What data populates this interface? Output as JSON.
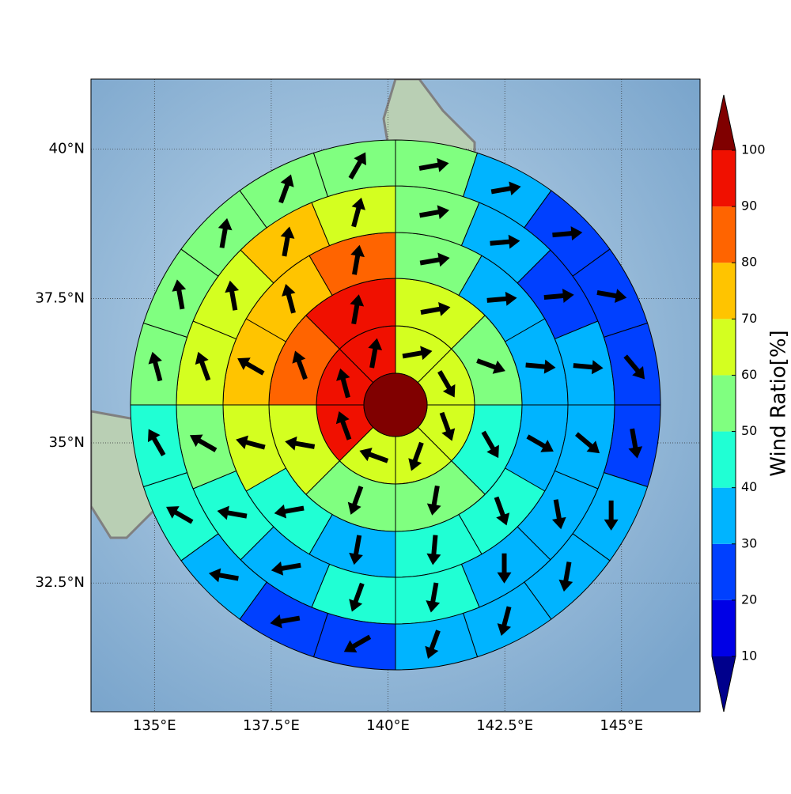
{
  "chart_data": {
    "type": "wind_map",
    "xlim": [
      133.64,
      146.68
    ],
    "ylim": [
      30.14,
      41.14
    ],
    "xticks": [
      {
        "value": 135,
        "label": "135°E"
      },
      {
        "value": 137.5,
        "label": "137.5°E"
      },
      {
        "value": 140,
        "label": "140°E"
      },
      {
        "value": 142.5,
        "label": "142.5°E"
      },
      {
        "value": 145,
        "label": "145°E"
      }
    ],
    "yticks": [
      {
        "value": 32.5,
        "label": "32.5°N"
      },
      {
        "value": 35,
        "label": "35°N"
      },
      {
        "value": 37.5,
        "label": "37.5°N"
      },
      {
        "value": 40,
        "label": "40°N"
      }
    ],
    "grid": true,
    "center_value": 105,
    "rings": [
      {
        "values": [
          65,
          65,
          65,
          65,
          65,
          95,
          95,
          95
        ],
        "directions": [
          80,
          150,
          160,
          200,
          290,
          340,
          345,
          10
        ]
      },
      {
        "values": [
          65,
          55,
          45,
          55,
          55,
          65,
          85,
          95
        ],
        "directions": [
          80,
          110,
          150,
          190,
          200,
          280,
          340,
          10
        ]
      },
      {
        "values": [
          55,
          35,
          35,
          35,
          45,
          45,
          35,
          45,
          65,
          75,
          75,
          85
        ],
        "directions": [
          80,
          85,
          95,
          120,
          160,
          185,
          190,
          260,
          285,
          300,
          345,
          10
        ]
      },
      {
        "values": [
          55,
          35,
          25,
          35,
          35,
          35,
          35,
          45,
          45,
          35,
          45,
          55,
          65,
          65,
          75,
          65
        ],
        "directions": [
          80,
          85,
          85,
          95,
          130,
          170,
          180,
          190,
          200,
          260,
          280,
          300,
          340,
          350,
          10,
          15
        ]
      },
      {
        "values": [
          55,
          35,
          25,
          25,
          25,
          25,
          35,
          35,
          35,
          35,
          25,
          25,
          35,
          45,
          45,
          55,
          55,
          55,
          55,
          55
        ],
        "directions": [
          80,
          80,
          85,
          100,
          140,
          170,
          180,
          190,
          195,
          200,
          240,
          260,
          280,
          300,
          330,
          345,
          350,
          10,
          20,
          30
        ]
      }
    ],
    "colorbar": {
      "label": "Wind Ratio[%]",
      "ticks": [
        10,
        20,
        30,
        40,
        50,
        60,
        70,
        80,
        90,
        100
      ],
      "colors": [
        "#0000e6",
        "#0040ff",
        "#00b4ff",
        "#20ffd4",
        "#80ff80",
        "#d4ff20",
        "#ffc400",
        "#ff6400",
        "#f01000"
      ],
      "under_color": "#00008c",
      "over_color": "#800000"
    }
  }
}
